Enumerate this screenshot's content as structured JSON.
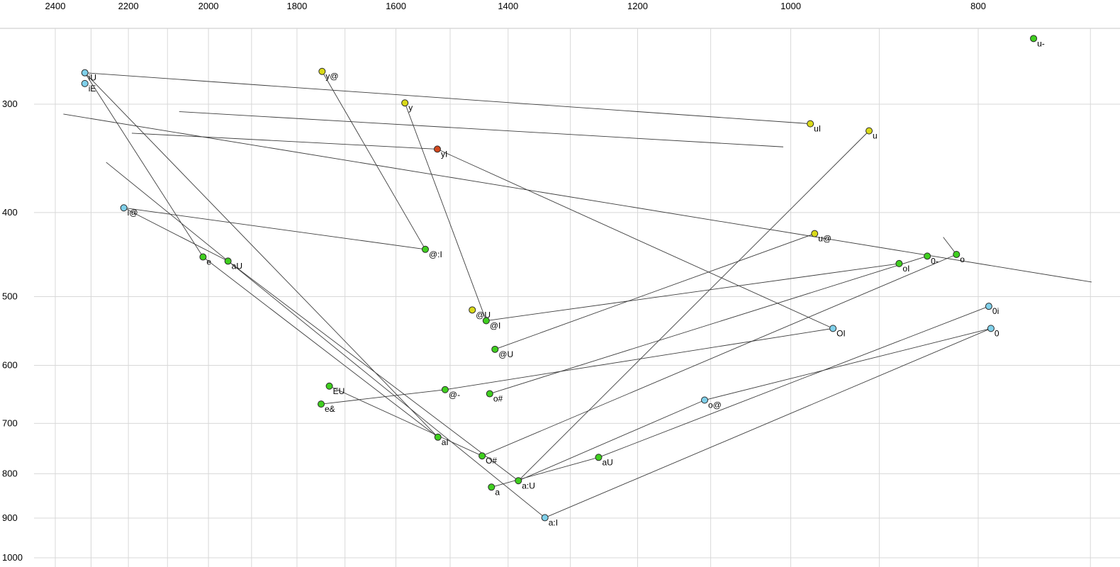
{
  "chart_data": {
    "type": "scatter",
    "title": "",
    "xlabel": "",
    "ylabel": "",
    "x_axis": {
      "ticks": [
        2400,
        2200,
        2000,
        1800,
        1600,
        1400,
        1200,
        1000,
        800
      ],
      "grid_values": [
        2400,
        2300,
        2200,
        2100,
        2000,
        1900,
        1800,
        1700,
        1600,
        1500,
        1400,
        1300,
        1200,
        1100,
        1000,
        900,
        800,
        700
      ],
      "scale": "log",
      "reversed": true,
      "range": [
        2400,
        800
      ]
    },
    "y_axis": {
      "ticks": [
        300,
        400,
        500,
        600,
        700,
        800,
        900,
        1000
      ],
      "grid_values": [
        300,
        400,
        500,
        600,
        700,
        800,
        900,
        1000
      ],
      "scale": "log",
      "reversed": true,
      "range": [
        300,
        1000
      ]
    },
    "legend": "none",
    "grid": true,
    "points": [
      {
        "label": "u-",
        "f2": 749,
        "f1": 252,
        "color": "green"
      },
      {
        "label": "iU",
        "f2": 2317,
        "f1": 276,
        "color": "cyan"
      },
      {
        "label": "iE",
        "f2": 2317,
        "f1": 284,
        "color": "cyan"
      },
      {
        "label": "y@",
        "f2": 1747,
        "f1": 275,
        "color": "yellow"
      },
      {
        "label": "y",
        "f2": 1583,
        "f1": 299,
        "color": "yellow"
      },
      {
        "label": "uI",
        "f2": 977,
        "f1": 316,
        "color": "yellow"
      },
      {
        "label": "u",
        "f2": 911,
        "f1": 322,
        "color": "yellow"
      },
      {
        "label": "yI",
        "f2": 1523,
        "f1": 338,
        "color": "red"
      },
      {
        "label": "i@",
        "f2": 2212,
        "f1": 395,
        "color": "cyan"
      },
      {
        "label": "u@",
        "f2": 972,
        "f1": 423,
        "color": "yellow"
      },
      {
        "label": "0-",
        "f2": 850,
        "f1": 449,
        "color": "green"
      },
      {
        "label": "o",
        "f2": 821,
        "f1": 447,
        "color": "green"
      },
      {
        "label": "oI",
        "f2": 879,
        "f1": 458,
        "color": "green"
      },
      {
        "label": "e",
        "f2": 2013,
        "f1": 450,
        "color": "green"
      },
      {
        "label": "aU",
        "f2": 1954,
        "f1": 455,
        "color": "green"
      },
      {
        "label": "@:I",
        "f2": 1545,
        "f1": 441,
        "color": "green"
      },
      {
        "label": "@U",
        "f2": 1461,
        "f1": 518,
        "color": "yellow"
      },
      {
        "label": "@I",
        "f2": 1437,
        "f1": 533,
        "color": "green"
      },
      {
        "label": "@U",
        "f2": 1422,
        "f1": 575,
        "color": "green"
      },
      {
        "label": "EU",
        "f2": 1732,
        "f1": 634,
        "color": "green"
      },
      {
        "label": "e&",
        "f2": 1749,
        "f1": 665,
        "color": "green"
      },
      {
        "label": "@-",
        "f2": 1509,
        "f1": 640,
        "color": "green"
      },
      {
        "label": "o#",
        "f2": 1431,
        "f1": 647,
        "color": "green"
      },
      {
        "label": "aI",
        "f2": 1522,
        "f1": 726,
        "color": "green"
      },
      {
        "label": "O#",
        "f2": 1444,
        "f1": 763,
        "color": "green"
      },
      {
        "label": "aU",
        "f2": 1257,
        "f1": 766,
        "color": "green"
      },
      {
        "label": "o@",
        "f2": 1108,
        "f1": 658,
        "color": "cyan"
      },
      {
        "label": "a:U",
        "f2": 1383,
        "f1": 815,
        "color": "green"
      },
      {
        "label": "a",
        "f2": 1428,
        "f1": 829,
        "color": "green"
      },
      {
        "label": "a:I",
        "f2": 1340,
        "f1": 899,
        "color": "cyan"
      },
      {
        "label": "OI",
        "f2": 951,
        "f1": 544,
        "color": "cyan"
      },
      {
        "label": "0i",
        "f2": 790,
        "f1": 513,
        "color": "cyan"
      },
      {
        "label": "0",
        "f2": 788,
        "f1": 544,
        "color": "cyan"
      }
    ],
    "segments": [
      [
        [
          2317,
          276
        ],
        [
          977,
          316
        ]
      ],
      [
        [
          2317,
          276
        ],
        [
          2013,
          450
        ]
      ],
      [
        [
          2317,
          276
        ],
        [
          1522,
          726
        ]
      ],
      [
        [
          2212,
          395
        ],
        [
          1954,
          455
        ]
      ],
      [
        [
          2212,
          395
        ],
        [
          1545,
          441
        ]
      ],
      [
        [
          2013,
          450
        ],
        [
          1522,
          726
        ]
      ],
      [
        [
          1954,
          455
        ],
        [
          1383,
          815
        ]
      ],
      [
        [
          1747,
          275
        ],
        [
          1545,
          441
        ]
      ],
      [
        [
          1583,
          299
        ],
        [
          1437,
          533
        ]
      ],
      [
        [
          1523,
          338
        ],
        [
          2191,
          324
        ]
      ],
      [
        [
          2377,
          308
        ],
        [
          699,
          481
        ]
      ],
      [
        [
          2259,
          350
        ],
        [
          1340,
          899
        ]
      ],
      [
        [
          1437,
          533
        ],
        [
          879,
          458
        ]
      ],
      [
        [
          1422,
          575
        ],
        [
          972,
          423
        ]
      ],
      [
        [
          1431,
          647
        ],
        [
          850,
          449
        ]
      ],
      [
        [
          1444,
          763
        ],
        [
          821,
          447
        ]
      ],
      [
        [
          1257,
          766
        ],
        [
          790,
          513
        ]
      ],
      [
        [
          1108,
          658
        ],
        [
          788,
          544
        ]
      ],
      [
        [
          1383,
          815
        ],
        [
          1108,
          658
        ]
      ],
      [
        [
          951,
          544
        ],
        [
          1523,
          338
        ]
      ],
      [
        [
          1383,
          815
        ],
        [
          911,
          322
        ]
      ],
      [
        [
          834,
          427
        ],
        [
          821,
          447
        ]
      ],
      [
        [
          1428,
          829
        ],
        [
          1257,
          766
        ]
      ],
      [
        [
          1732,
          634
        ],
        [
          1444,
          763
        ]
      ],
      [
        [
          1749,
          665
        ],
        [
          1509,
          640
        ]
      ],
      [
        [
          1509,
          640
        ],
        [
          951,
          544
        ]
      ],
      [
        [
          2071,
          306
        ],
        [
          1009,
          336
        ]
      ],
      [
        [
          1340,
          899
        ],
        [
          788,
          544
        ]
      ]
    ]
  },
  "colors": {
    "background": "#ffffff",
    "grid": "#d8d8d8",
    "plot_border": "#c4c4c4",
    "segment": "#3d3d3d",
    "point_stroke": "#2a2a2a",
    "text": "#000000",
    "palette": {
      "green": "#3fcf1f",
      "yellow": "#d9d919",
      "cyan": "#7fd0ea",
      "red": "#d2481e"
    }
  }
}
